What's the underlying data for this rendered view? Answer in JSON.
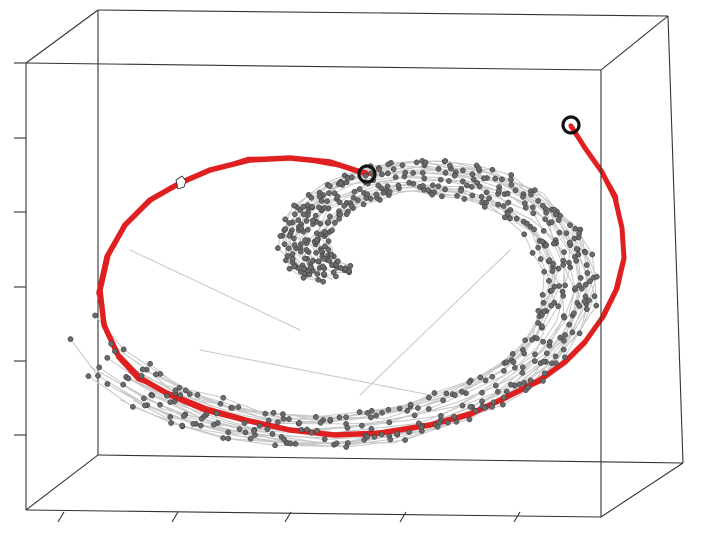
{
  "figure": {
    "kind": "3d-trajectory-scatter",
    "colors": {
      "background": "#ffffff",
      "box_edge": "#333333",
      "trajectory": "#c8c8c8",
      "node_fill": "#6a6a6a",
      "highlight": "#e02020",
      "marker": "#111111"
    },
    "projection": "perspective box",
    "left_axis_ticks": 6,
    "bottom_axis_ticks": 5,
    "trajectory_strands": 24,
    "highlighted_segments": 2,
    "endpoint_markers": 2,
    "cursor_icon": "pointer-hand-icon"
  }
}
